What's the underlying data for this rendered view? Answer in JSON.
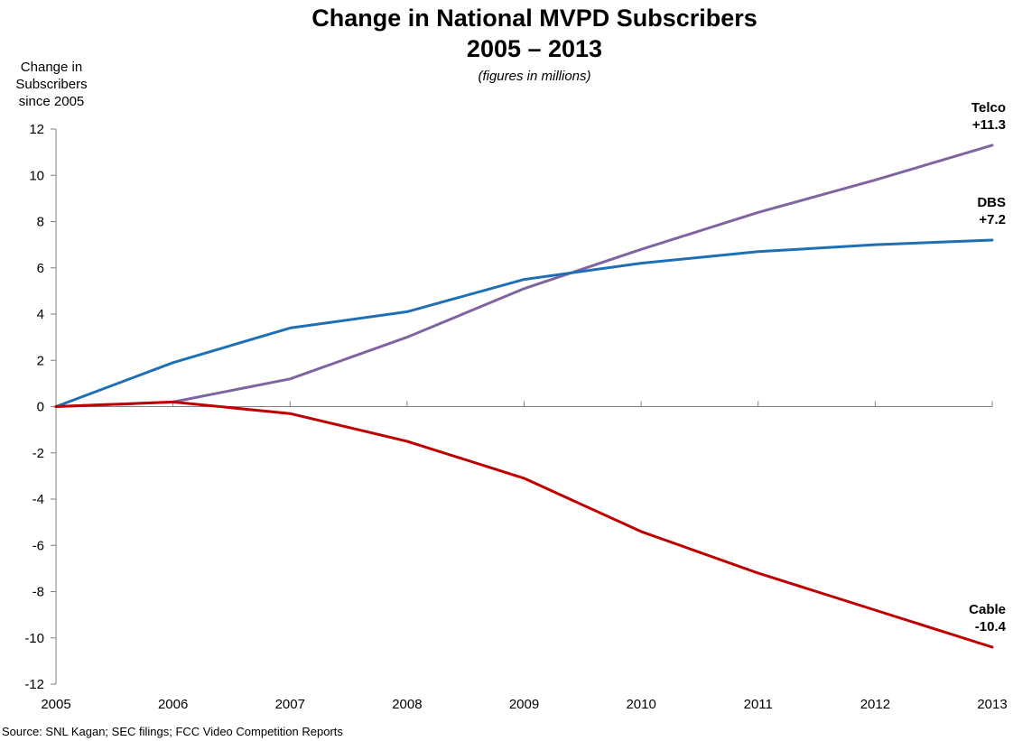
{
  "chart_data": {
    "type": "line",
    "title": "Change in National MVPD Subscribers",
    "title_line2": "2005 – 2013",
    "subtitle": "(figures in millions)",
    "ylabel_lines": [
      "Change in",
      "Subscribers",
      "since 2005"
    ],
    "xlabel": "",
    "x": [
      2005,
      2006,
      2007,
      2008,
      2009,
      2010,
      2011,
      2012,
      2013
    ],
    "ylim": [
      -12,
      12
    ],
    "yticks": [
      12,
      10,
      8,
      6,
      4,
      2,
      0,
      -2,
      -4,
      -6,
      -8,
      -10,
      -12
    ],
    "grid": false,
    "series": [
      {
        "name": "Telco",
        "end_label": "+11.3",
        "color": "#8064a2",
        "values": [
          0,
          0.2,
          1.2,
          3.0,
          5.1,
          6.8,
          8.4,
          9.8,
          11.3
        ]
      },
      {
        "name": "DBS",
        "end_label": "+7.2",
        "color": "#1f6fb5",
        "values": [
          0,
          1.9,
          3.4,
          4.1,
          5.5,
          6.2,
          6.7,
          7.0,
          7.2
        ]
      },
      {
        "name": "Cable",
        "end_label": "-10.4",
        "color": "#c00000",
        "values": [
          0,
          0.2,
          -0.3,
          -1.5,
          -3.1,
          -5.4,
          -7.2,
          -8.8,
          -10.4
        ]
      }
    ],
    "source": "Source:  SNL Kagan;  SEC filings;  FCC Video Competition  Reports"
  }
}
